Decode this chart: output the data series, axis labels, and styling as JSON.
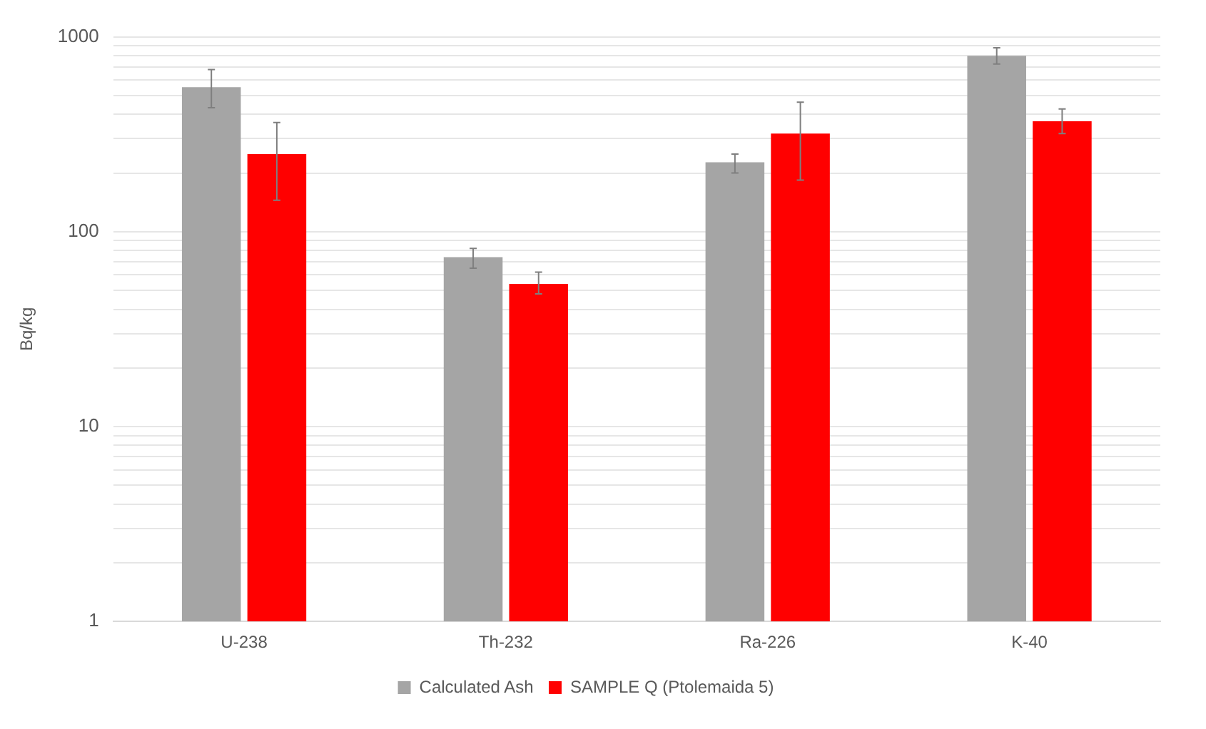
{
  "chart_data": {
    "type": "bar",
    "ylabel": "Bq/kg",
    "categories": [
      "U-238",
      "Th-232",
      "Ra-226",
      "K-40"
    ],
    "series": [
      {
        "name": "Calculated Ash",
        "color": "#a5a5a5",
        "values": [
          551,
          74,
          227,
          798
        ],
        "errors": [
          [
            433,
            679
          ],
          [
            65,
            82
          ],
          [
            200,
            250
          ],
          [
            725,
            879
          ]
        ]
      },
      {
        "name": "SAMPLE Q (Ptolemaida 5)",
        "color": "#ff0000",
        "values": [
          250,
          54,
          319,
          369
        ],
        "errors": [
          [
            145,
            363
          ],
          [
            48,
            62
          ],
          [
            184,
            462
          ],
          [
            319,
            426
          ]
        ]
      }
    ],
    "log": true,
    "ylim": [
      1,
      1000
    ],
    "yticks": [
      1,
      {
        "value": 2,
        "label": null
      },
      {
        "value": 3,
        "label": null
      },
      {
        "value": 4,
        "label": null
      },
      {
        "value": 5,
        "label": null
      },
      {
        "value": 6,
        "label": null
      },
      {
        "value": 7,
        "label": null
      },
      {
        "value": 8,
        "label": null
      },
      {
        "value": 9,
        "label": null
      },
      10,
      {
        "value": 20,
        "label": null
      },
      {
        "value": 30,
        "label": null
      },
      {
        "value": 40,
        "label": null
      },
      {
        "value": 50,
        "label": null
      },
      {
        "value": 60,
        "label": null
      },
      {
        "value": 70,
        "label": null
      },
      {
        "value": 80,
        "label": null
      },
      {
        "value": 90,
        "label": null
      },
      100,
      {
        "value": 200,
        "label": null
      },
      {
        "value": 300,
        "label": null
      },
      {
        "value": 400,
        "label": null
      },
      {
        "value": 500,
        "label": null
      },
      {
        "value": 600,
        "label": null
      },
      {
        "value": 700,
        "label": null
      },
      {
        "value": 800,
        "label": null
      },
      {
        "value": 900,
        "label": null
      },
      1000
    ],
    "grid": "y",
    "legend": "bottom"
  }
}
